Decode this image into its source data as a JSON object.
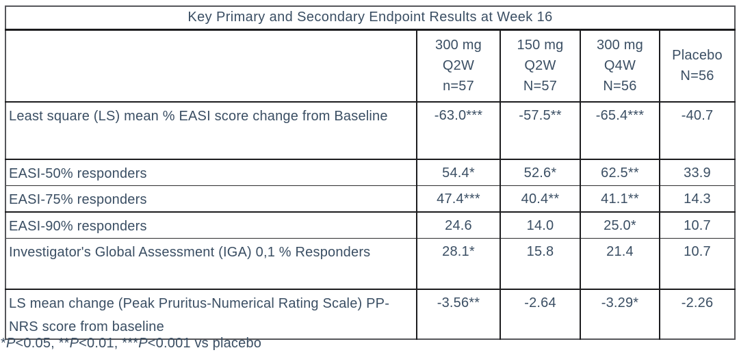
{
  "colors": {
    "text": "#3a4e63",
    "outer_border": "#55565a",
    "inner_border": "#1c1c1e",
    "background": "#ffffff"
  },
  "table": {
    "title": "Key Primary and Secondary Endpoint Results at Week 16",
    "columns": [
      {
        "lines": [
          "300 mg",
          "Q2W",
          "n=57"
        ]
      },
      {
        "lines": [
          "150 mg",
          "Q2W",
          "N=57"
        ]
      },
      {
        "lines": [
          "300 mg",
          "Q4W",
          "N=56"
        ]
      },
      {
        "lines": [
          "Placebo",
          "N=56"
        ]
      }
    ],
    "rows": [
      {
        "label": "Least square (LS) mean % EASI score change from Baseline",
        "values": [
          "-63.0***",
          "-57.5**",
          "-65.4***",
          "-40.7"
        ]
      },
      {
        "label": "EASI-50% responders",
        "values": [
          "54.4*",
          "52.6*",
          "62.5**",
          "33.9"
        ]
      },
      {
        "label": "EASI-75% responders",
        "values": [
          "47.4***",
          "40.4**",
          "41.1**",
          "14.3"
        ]
      },
      {
        "label": "EASI-90% responders",
        "values": [
          "24.6",
          "14.0",
          "25.0*",
          "10.7"
        ]
      },
      {
        "label": "Investigator's Global Assessment (IGA) 0,1 % Responders",
        "values": [
          "28.1*",
          "15.8",
          "21.4",
          "10.7"
        ]
      },
      {
        "label": "LS mean change (Peak Pruritus-Numerical Rating Scale) PP-NRS score from baseline",
        "values": [
          "-3.56**",
          "-2.64",
          "-3.29*",
          "-2.26"
        ]
      }
    ]
  },
  "footnote": "*P<0.05, **P<0.01, ***P<0.001 vs placebo"
}
